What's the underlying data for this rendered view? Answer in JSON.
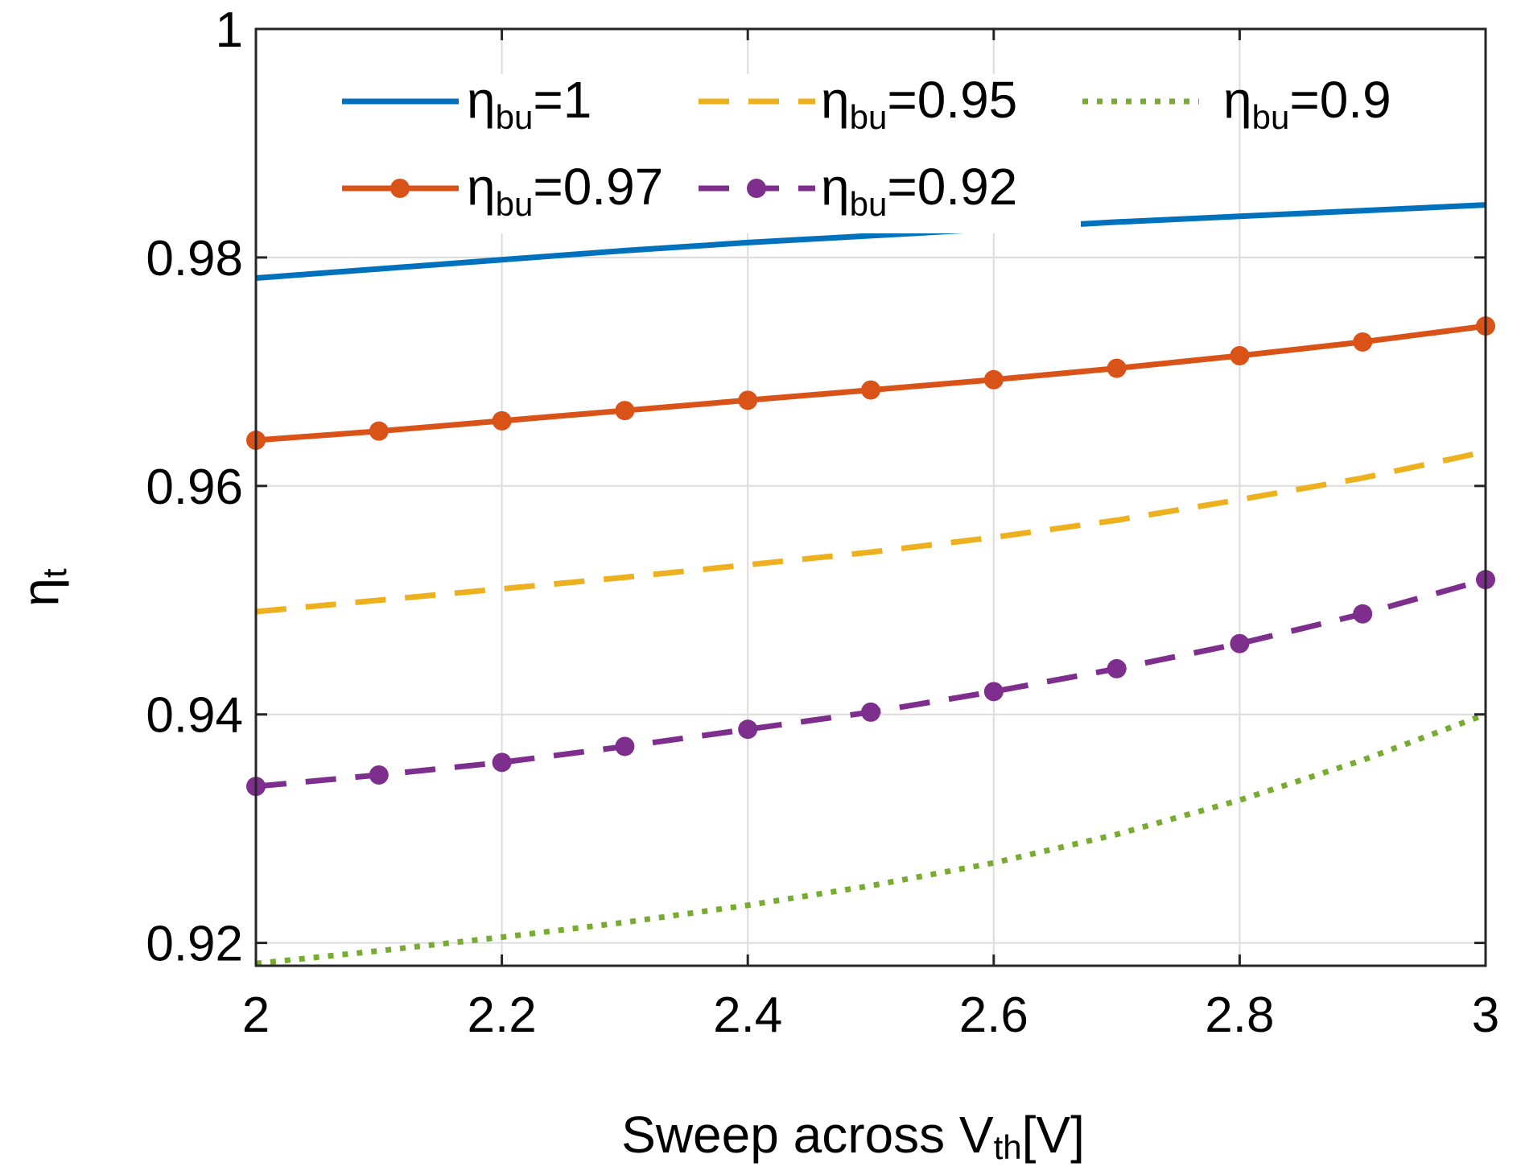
{
  "chart_data": {
    "type": "line",
    "xlabel": {
      "main": "Sweep across V",
      "sub": "th",
      "suffix": "[V]"
    },
    "ylabel": {
      "main": "η",
      "sub": "t"
    },
    "xlim": [
      2,
      3
    ],
    "ylim": [
      0.918,
      1.0
    ],
    "xticks": [
      2,
      2.2,
      2.4,
      2.6,
      2.8,
      3
    ],
    "xtick_labels": [
      "2",
      "2.2",
      "2.4",
      "2.6",
      "2.8",
      "3"
    ],
    "yticks": [
      0.92,
      0.94,
      0.96,
      0.98,
      1.0
    ],
    "ytick_labels": [
      "0.92",
      "0.94",
      "0.96",
      "0.98",
      "1"
    ],
    "grid": true,
    "legend_position": "top",
    "x": [
      2.0,
      2.1,
      2.2,
      2.3,
      2.4,
      2.5,
      2.6,
      2.7,
      2.8,
      2.9,
      3.0
    ],
    "series": [
      {
        "name": "η_bu=1",
        "label_main": "η",
        "label_sub": "bu",
        "label_suffix": "=1",
        "color": "#0072BD",
        "style": "solid",
        "marker": false,
        "values": [
          0.9782,
          0.979,
          0.9798,
          0.9806,
          0.9813,
          0.9819,
          0.9825,
          0.9831,
          0.9836,
          0.9841,
          0.9846
        ]
      },
      {
        "name": "η_bu=0.95",
        "label_main": "η",
        "label_sub": "bu",
        "label_suffix": "=0.95",
        "color": "#EDB120",
        "style": "dash",
        "marker": false,
        "values": [
          0.949,
          0.95,
          0.951,
          0.952,
          0.9531,
          0.9542,
          0.9555,
          0.957,
          0.9588,
          0.9607,
          0.963
        ]
      },
      {
        "name": "η_bu=0.9",
        "label_main": "η",
        "label_sub": "bu",
        "label_suffix": "=0.9",
        "color": "#77AC30",
        "style": "dot",
        "marker": false,
        "values": [
          0.9182,
          0.9193,
          0.9205,
          0.9218,
          0.9233,
          0.925,
          0.927,
          0.9295,
          0.9325,
          0.936,
          0.94
        ]
      },
      {
        "name": "η_bu=0.97",
        "label_main": "η",
        "label_sub": "bu",
        "label_suffix": "=0.97",
        "color": "#D95319",
        "style": "solid",
        "marker": true,
        "values": [
          0.964,
          0.9648,
          0.9657,
          0.9666,
          0.9675,
          0.9684,
          0.9693,
          0.9703,
          0.9714,
          0.9726,
          0.974
        ]
      },
      {
        "name": "η_bu=0.92",
        "label_main": "η",
        "label_sub": "bu",
        "label_suffix": "=0.92",
        "color": "#7E2F8E",
        "style": "dash",
        "marker": true,
        "values": [
          0.9337,
          0.9347,
          0.9358,
          0.9372,
          0.9387,
          0.9402,
          0.942,
          0.944,
          0.9462,
          0.9488,
          0.9518
        ]
      }
    ]
  }
}
